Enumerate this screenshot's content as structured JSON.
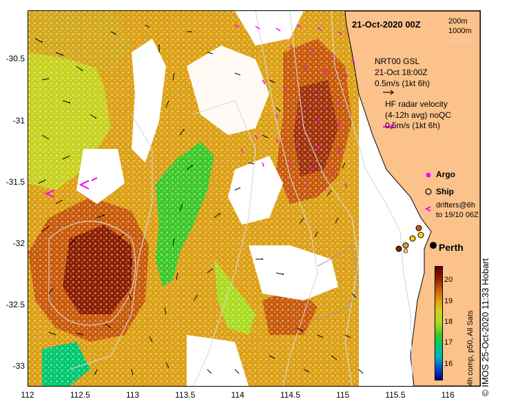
{
  "map": {
    "title_date": "21-Oct-2020 00Z",
    "depth_legend": [
      "200m",
      "1000m"
    ],
    "lat_ticks": [
      "-30.5",
      "-31",
      "-31.5",
      "-32",
      "-32.5",
      "-33"
    ],
    "lon_ticks": [
      "112",
      "112.5",
      "113",
      "113.5",
      "114",
      "114.5",
      "115",
      "115.5",
      "116"
    ],
    "lat_values": [
      -30.5,
      -31,
      -31.5,
      -32,
      -32.5,
      -33
    ],
    "lon_values": [
      112,
      112.5,
      113,
      113.5,
      114,
      114.5,
      115,
      115.5,
      116
    ],
    "lon_range": [
      112,
      116.3
    ],
    "lat_range": [
      -33.15,
      -30.1
    ],
    "city": "Perth",
    "city_lon": 115.86,
    "city_lat": -31.95
  },
  "legend": {
    "nrt_title": "NRT00 GSL",
    "nrt_time": "21-Oct 18:00Z",
    "nrt_scale": "0.5m/s (1kt 6h)",
    "hf_title": "HF radar velocity",
    "hf_detail": "(4-12h avg) noQC",
    "hf_scale": "0.5m/s (1kt 6h)",
    "argo": "Argo",
    "ship": "Ship",
    "drifters_1": "drifters@6h",
    "drifters_2": "to 19/10 06Z"
  },
  "colorbar": {
    "ticks": [
      "16",
      "17",
      "18",
      "19",
      "20"
    ],
    "tick_values": [
      16,
      17,
      18,
      19,
      20
    ],
    "range": [
      15.3,
      20.7
    ],
    "label": "4h comp, p50, All Sats",
    "colors": [
      "#000080",
      "#0050c8",
      "#00b4c8",
      "#00c86e",
      "#3cc828",
      "#aadc1e",
      "#d2d21e",
      "#dca014",
      "#c85a0a",
      "#8c1e00",
      "#640000"
    ]
  },
  "credit": "IMOS 25-Oct-2020 11:33 Hobart",
  "copyright": "©"
}
